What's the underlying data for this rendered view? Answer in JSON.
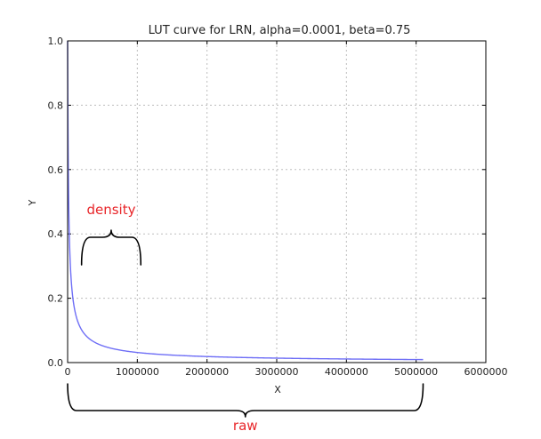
{
  "chart_data": {
    "type": "line",
    "title": "LUT curve for LRN, alpha=0.0001, beta=0.75",
    "xlabel": "X",
    "ylabel": "Y",
    "xlim": [
      0,
      6000000
    ],
    "ylim": [
      0,
      1.0
    ],
    "x_ticks": [
      "0",
      "1000000",
      "2000000",
      "3000000",
      "4000000",
      "5000000",
      "6000000"
    ],
    "y_ticks": [
      "0.0",
      "0.2",
      "0.4",
      "0.6",
      "0.8",
      "1.0"
    ],
    "grid": true,
    "series": [
      {
        "color": "#6e6ef6",
        "formula": "y = (1 + 0.0001 * x)^(-0.75)",
        "x_range": [
          0,
          5100000
        ]
      }
    ],
    "annotations": [
      {
        "label": "density",
        "color": "#e8262a",
        "x_range": [
          200000,
          1050000
        ]
      },
      {
        "label": "raw",
        "color": "#e8262a",
        "x_range": [
          0,
          5100000
        ]
      }
    ]
  }
}
